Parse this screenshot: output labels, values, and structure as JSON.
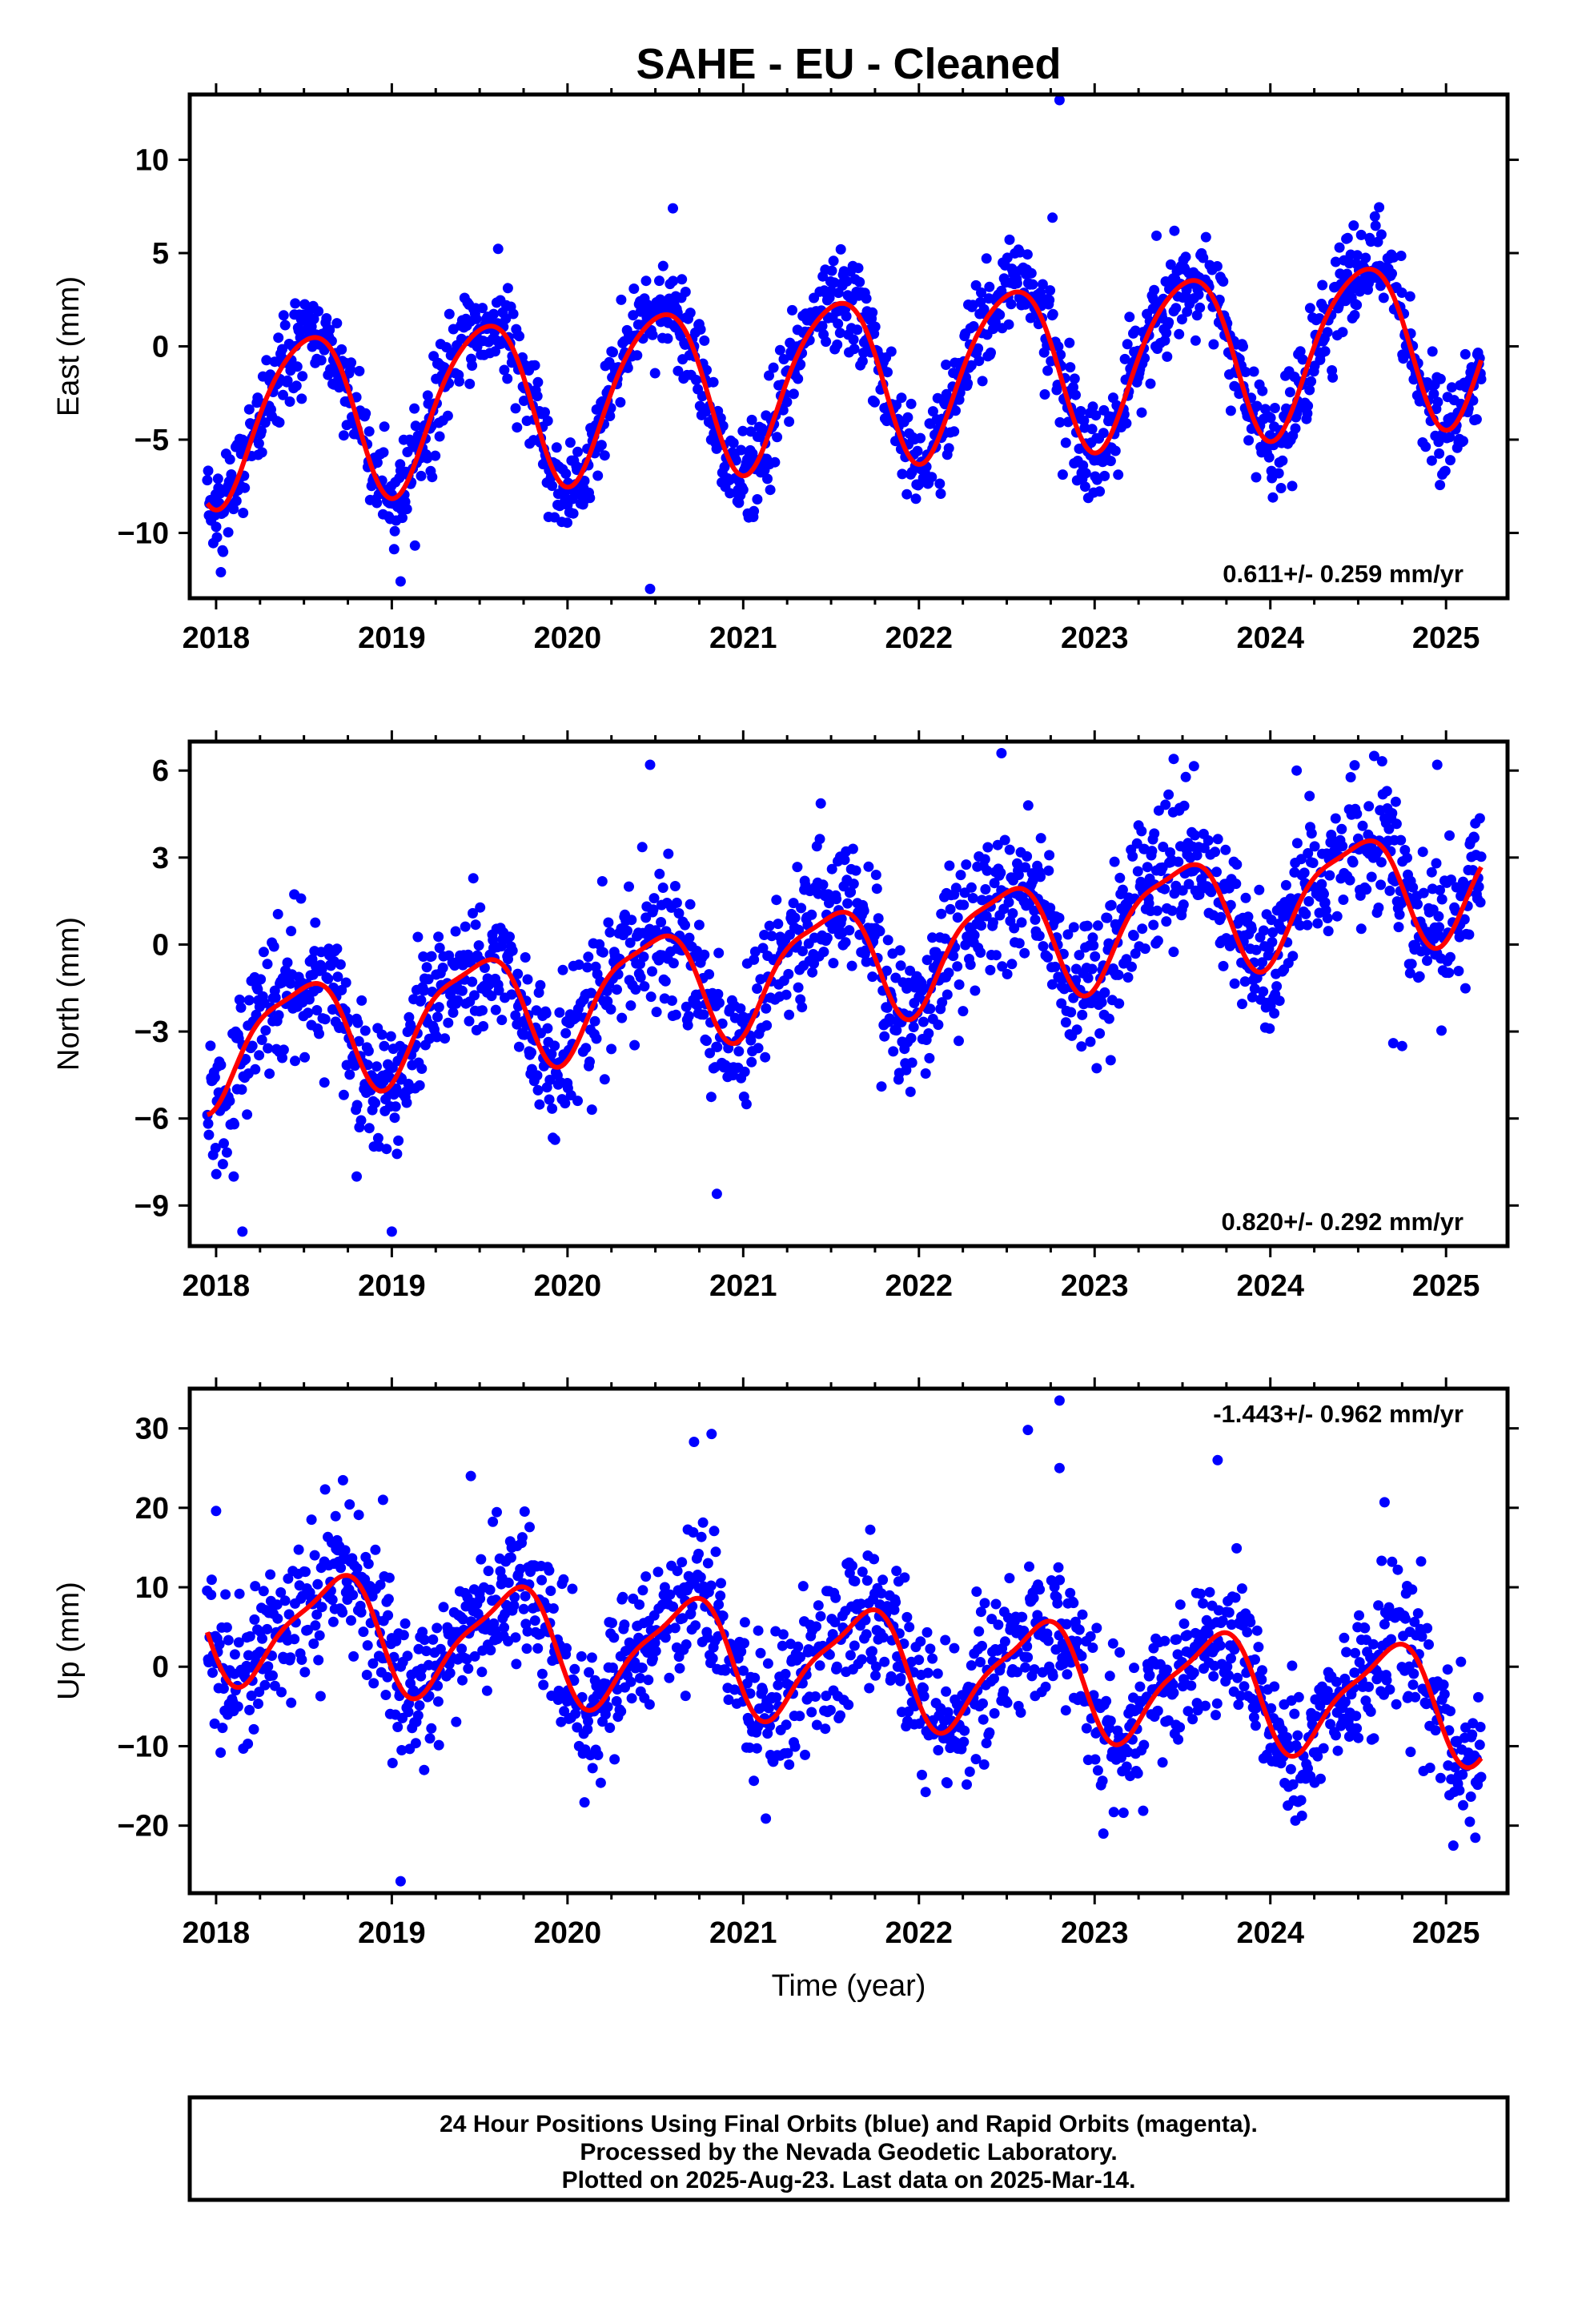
{
  "title": "SAHE  - EU - Cleaned",
  "footer": {
    "lines": [
      "24 Hour Positions Using Final Orbits (blue) and Rapid Orbits (magenta).",
      "Processed by the Nevada Geodetic Laboratory.",
      "Plotted on 2025-Aug-23. Last data on 2025-Mar-14."
    ]
  },
  "colors": {
    "final_orbits": "#0000ff",
    "rapid_orbits": "#ff00ff",
    "model_fit": "#ff0000",
    "frame": "#000000"
  },
  "chart_data": [
    {
      "type": "scatter",
      "component": "east",
      "ylabel": "East (mm)",
      "xlabel": "",
      "xlim": [
        2017.85,
        2025.35
      ],
      "ylim": [
        -13.5,
        13.5
      ],
      "xticks": [
        2018,
        2019,
        2020,
        2021,
        2022,
        2023,
        2024,
        2025
      ],
      "yticks": [
        -10,
        -5,
        0,
        5,
        10
      ],
      "rate_label": "0.611+/- 0.259 mm/yr",
      "rate_position": "bottom-right",
      "model": {
        "rate": 0.611,
        "offset": -1.7,
        "annual_amp": 4.4,
        "annual_phase": 0.27,
        "semiannual_amp": 0.6,
        "semiannual_phase": 0.1
      },
      "scatter": {
        "noise": 1.3,
        "spread_range": [
          2017.95,
          2025.2
        ]
      },
      "outliers": [
        {
          "x": 2022.8,
          "y": 13.2
        },
        {
          "x": 2019.05,
          "y": -12.6
        },
        {
          "x": 2020.47,
          "y": -13.0
        },
        {
          "x": 2020.6,
          "y": 7.4
        },
        {
          "x": 2022.76,
          "y": 6.9
        },
        {
          "x": 2018.95,
          "y": -9.0
        },
        {
          "x": 2020.0,
          "y": -8.5
        },
        {
          "x": 2021.08,
          "y": -8.2
        },
        {
          "x": 2022.95,
          "y": -6.8
        }
      ]
    },
    {
      "type": "scatter",
      "component": "north",
      "ylabel": "North (mm)",
      "xlabel": "",
      "xlim": [
        2017.85,
        2025.35
      ],
      "ylim": [
        -10.4,
        7.0
      ],
      "xticks": [
        2018,
        2019,
        2020,
        2021,
        2022,
        2023,
        2024,
        2025
      ],
      "yticks": [
        -9,
        -6,
        -3,
        0,
        3,
        6
      ],
      "rate_label": "0.820+/- 0.292 mm/yr",
      "rate_position": "bottom-right",
      "model": {
        "rate": 0.82,
        "offset": -0.6,
        "annual_amp": 1.9,
        "annual_phase": 0.22,
        "semiannual_amp": 0.5,
        "semiannual_phase": 0.05
      },
      "scatter": {
        "noise": 1.25,
        "spread_range": [
          2017.95,
          2025.2
        ]
      },
      "outliers": [
        {
          "x": 2018.15,
          "y": -9.9
        },
        {
          "x": 2018.1,
          "y": -8.0
        },
        {
          "x": 2018.8,
          "y": -8.0
        },
        {
          "x": 2019.0,
          "y": -9.9
        },
        {
          "x": 2020.47,
          "y": 6.2
        },
        {
          "x": 2022.47,
          "y": 6.6
        },
        {
          "x": 2020.85,
          "y": -8.6
        },
        {
          "x": 2023.45,
          "y": 6.4
        },
        {
          "x": 2024.15,
          "y": 6.0
        },
        {
          "x": 2024.7,
          "y": -3.4
        },
        {
          "x": 2024.75,
          "y": -3.5
        },
        {
          "x": 2024.95,
          "y": 6.2
        }
      ]
    },
    {
      "type": "scatter",
      "component": "up",
      "ylabel": "Up (mm)",
      "xlabel": "Time (year)",
      "xlim": [
        2017.85,
        2025.35
      ],
      "ylim": [
        -28.5,
        35.0
      ],
      "xticks": [
        2018,
        2019,
        2020,
        2021,
        2022,
        2023,
        2024,
        2025
      ],
      "yticks": [
        -20,
        -10,
        0,
        10,
        20,
        30
      ],
      "rate_label": "-1.443+/- 0.962 mm/yr",
      "rate_position": "top-right",
      "model": {
        "rate": -1.443,
        "offset": 0.5,
        "annual_amp": 6.8,
        "annual_phase": 0.42,
        "semiannual_amp": 1.8,
        "semiannual_phase": 0.2
      },
      "scatter": {
        "noise": 4.6,
        "spread_range": [
          2017.95,
          2025.2
        ]
      },
      "outliers": [
        {
          "x": 2019.05,
          "y": -27.0
        },
        {
          "x": 2022.8,
          "y": 33.5
        },
        {
          "x": 2022.62,
          "y": 29.8
        },
        {
          "x": 2020.72,
          "y": 28.3
        },
        {
          "x": 2020.82,
          "y": 29.3
        },
        {
          "x": 2023.7,
          "y": 26.0
        },
        {
          "x": 2019.45,
          "y": 24.0
        },
        {
          "x": 2018.0,
          "y": 19.6
        },
        {
          "x": 2022.8,
          "y": 25.0
        },
        {
          "x": 2018.95,
          "y": 21.0
        },
        {
          "x": 2024.65,
          "y": 20.7
        },
        {
          "x": 2023.05,
          "y": -21.0
        }
      ]
    }
  ]
}
